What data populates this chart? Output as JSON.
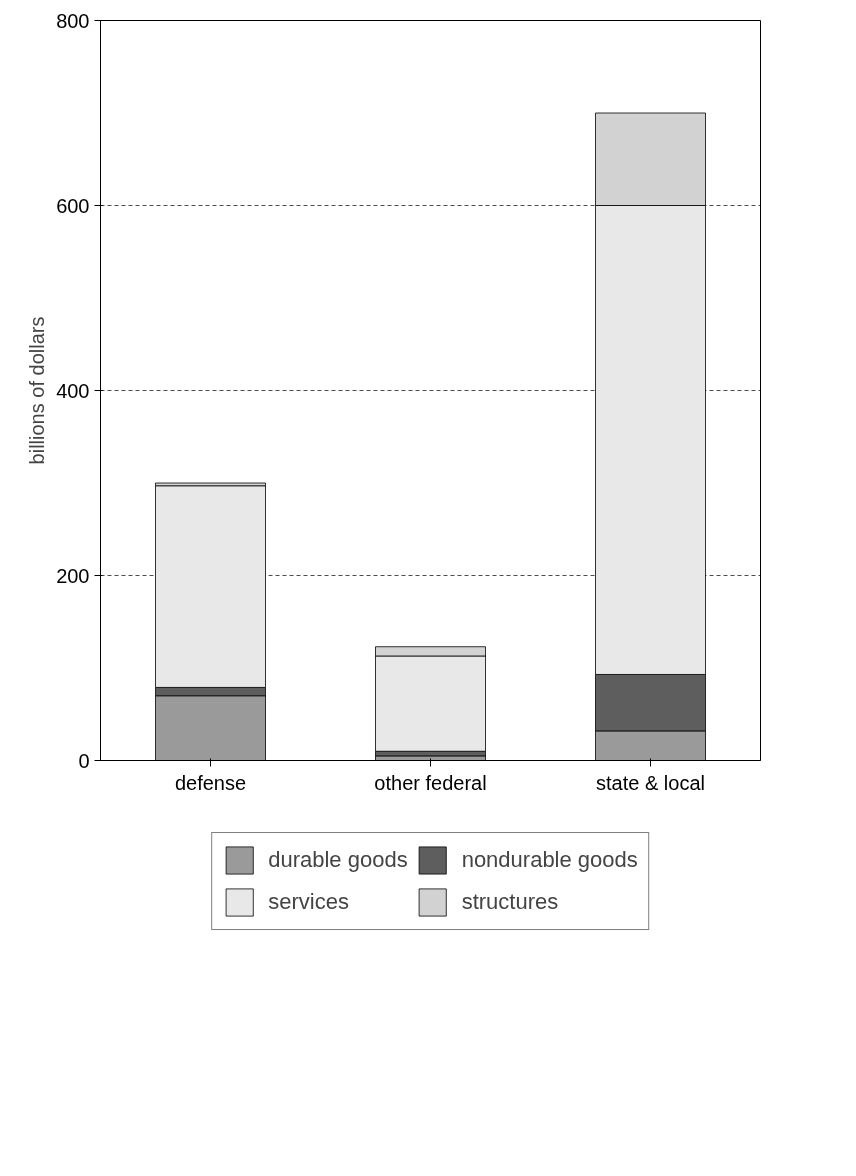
{
  "chart_data": {
    "type": "bar",
    "stacked": true,
    "ylabel": "billions of dollars",
    "categories": [
      "defense",
      "other federal",
      "state & local"
    ],
    "series": [
      {
        "name": "durable goods",
        "color": "#9a9a9a",
        "values": [
          70,
          5,
          32
        ]
      },
      {
        "name": "nondurable goods",
        "color": "#5e5e5e",
        "values": [
          9,
          5,
          61
        ]
      },
      {
        "name": "services",
        "color": "#e8e8e8",
        "values": [
          218,
          103,
          507
        ]
      },
      {
        "name": "structures",
        "color": "#d2d2d2",
        "values": [
          3,
          10,
          100
        ]
      }
    ],
    "ylim": [
      0,
      800
    ],
    "yticks": [
      0,
      200,
      400,
      600,
      800
    ],
    "grid": "y",
    "legend": "bottom"
  }
}
